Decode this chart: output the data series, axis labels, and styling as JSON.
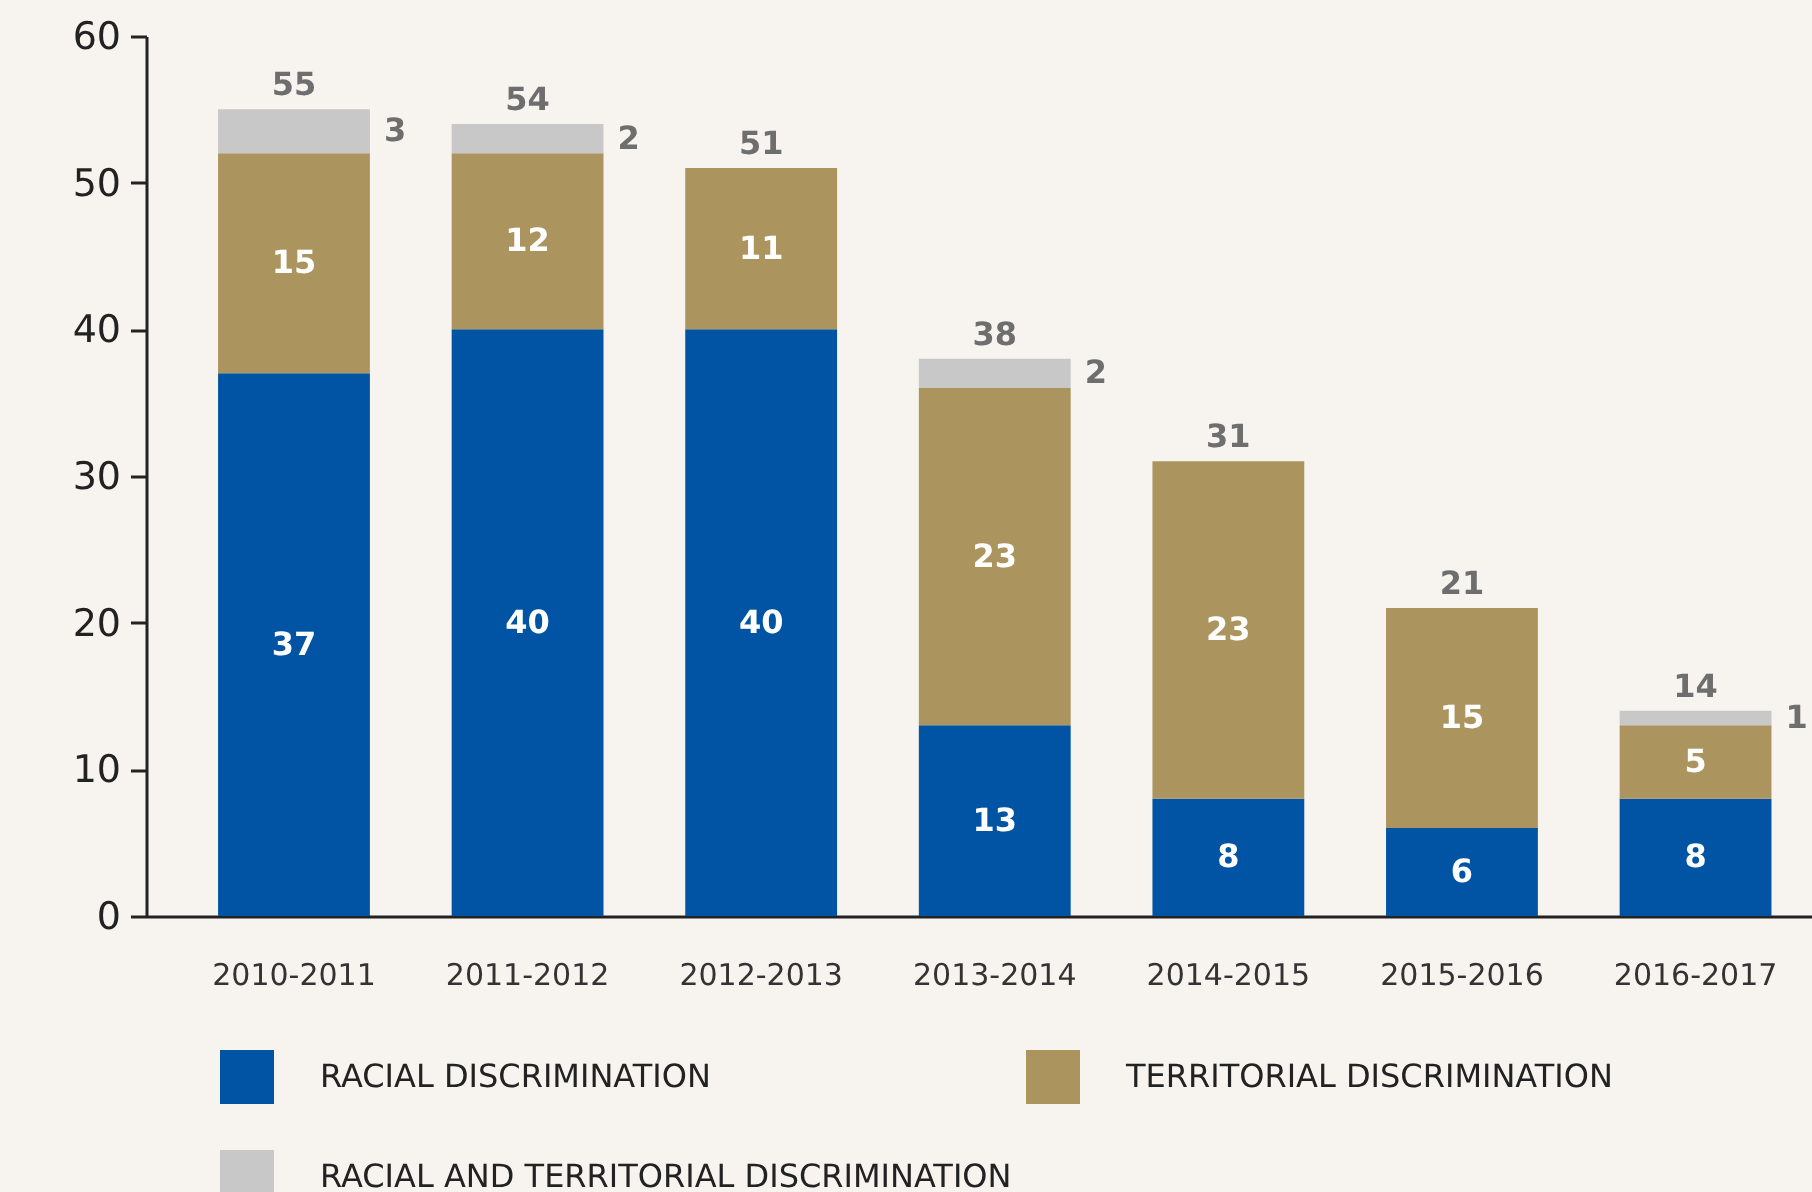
{
  "chart_data": {
    "type": "bar",
    "stacked": true,
    "categories": [
      "2010-2011",
      "2011-2012",
      "2012-2013",
      "2013-2014",
      "2014-2015",
      "2015-2016",
      "2016-2017"
    ],
    "series": [
      {
        "name": "RACIAL DISCRIMINATION",
        "color": "#0054a3",
        "values": [
          37,
          40,
          40,
          13,
          8,
          6,
          8
        ]
      },
      {
        "name": "TERRITORIAL DISCRIMINATION",
        "color": "#ab945e",
        "values": [
          15,
          12,
          11,
          23,
          23,
          15,
          5
        ]
      },
      {
        "name": "RACIAL AND TERRITORIAL DISCRIMINATION",
        "color": "#c8c8c8",
        "values": [
          3,
          2,
          null,
          2,
          null,
          null,
          1
        ]
      }
    ],
    "ylim": [
      0,
      60
    ],
    "yticks": [
      0,
      10,
      20,
      30,
      40,
      50,
      60
    ],
    "grid": false,
    "legend": "bottom",
    "data_labels": true,
    "totals": [
      "55",
      "54",
      "51",
      "38",
      "31",
      "21",
      "14"
    ]
  }
}
